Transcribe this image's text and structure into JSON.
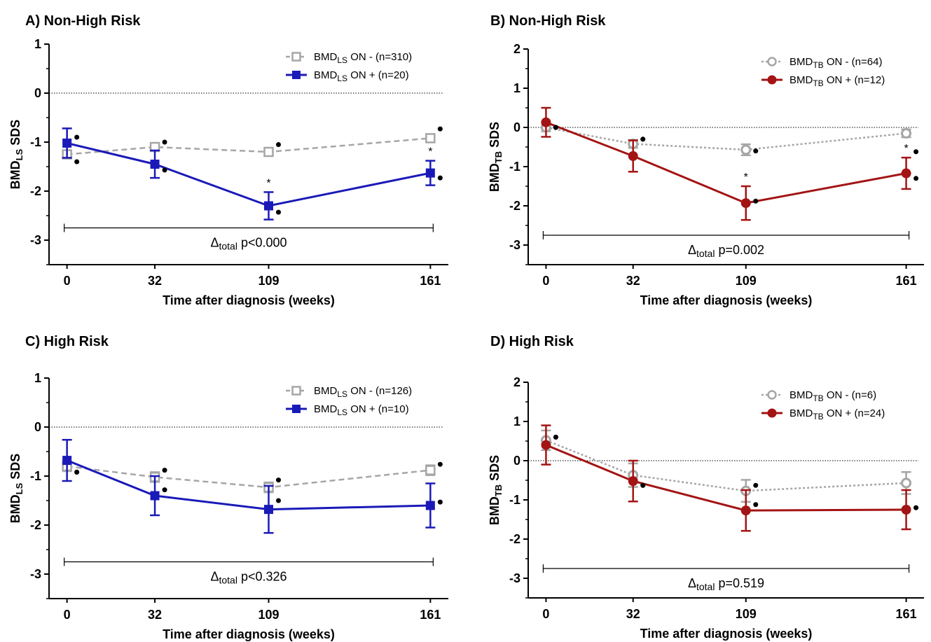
{
  "figure": {
    "panels": [
      {
        "title": "A)  Non-High Risk",
        "ylabel_main": "BMD",
        "ylabel_sub": "LS",
        "ylabel_tail": " SDS",
        "xlabel": "Time after diagnosis (weeks)",
        "annotation_main": "Δ",
        "annotation_sub": "total",
        "annotation_tail": " p<0.000",
        "legend": [
          {
            "main": "BMD",
            "sub": "LS",
            "tail": " ON -  (n=310)"
          },
          {
            "main": "BMD",
            "sub": "LS",
            "tail": " ON + (n=20)"
          }
        ]
      },
      {
        "title": "B)  Non-High Risk",
        "ylabel_main": "BMD",
        "ylabel_sub": "TB",
        "ylabel_tail": " SDS",
        "xlabel": "Time after diagnosis (weeks)",
        "annotation_main": "Δ",
        "annotation_sub": "total",
        "annotation_tail": " p=0.002",
        "legend": [
          {
            "main": "BMD",
            "sub": "TB",
            "tail": " ON -  (n=64)"
          },
          {
            "main": "BMD",
            "sub": "TB",
            "tail": " ON + (n=12)"
          }
        ]
      },
      {
        "title": "C)  High Risk",
        "ylabel_main": "BMD",
        "ylabel_sub": "LS",
        "ylabel_tail": " SDS",
        "xlabel": "Time after diagnosis (weeks)",
        "annotation_main": "Δ",
        "annotation_sub": "total",
        "annotation_tail": " p<0.326",
        "legend": [
          {
            "main": "BMD",
            "sub": "LS",
            "tail": " ON -  (n=126)"
          },
          {
            "main": "BMD",
            "sub": "LS",
            "tail": " ON + (n=10)"
          }
        ]
      },
      {
        "title": "D)  High Risk",
        "ylabel_main": "BMD",
        "ylabel_sub": "TB",
        "ylabel_tail": " SDS",
        "xlabel": "Time after diagnosis (weeks)",
        "annotation_main": "Δ",
        "annotation_sub": "total",
        "annotation_tail": " p=0.519",
        "legend": [
          {
            "main": "BMD",
            "sub": "TB",
            "tail": " ON -  (n=6)"
          },
          {
            "main": "BMD",
            "sub": "TB",
            "tail": " ON + (n=24)"
          }
        ]
      }
    ]
  },
  "chart_data": [
    {
      "type": "line",
      "title": "A)  Non-High Risk",
      "xlabel": "Time after diagnosis (weeks)",
      "ylabel": "BMD LS SDS",
      "x": [
        "0",
        "32",
        "109",
        "161"
      ],
      "ylim": [
        -3.5,
        1
      ],
      "yticks": [
        "1",
        "0",
        "-1",
        "-2",
        "-3"
      ],
      "marker": "square",
      "significance": [
        "",
        "",
        "*",
        "*"
      ],
      "significance_label": "*",
      "series": [
        {
          "name": "BMD LS ON -  (n=310)",
          "color": "#a6a6a6",
          "dashed": true,
          "values": [
            -1.25,
            -1.1,
            -1.2,
            -0.92
          ],
          "err": [
            0.05,
            0.05,
            0.05,
            0.05
          ]
        },
        {
          "name": "BMD LS ON + (n=20)",
          "color": "#1a1ab8",
          "dashed": false,
          "values": [
            -1.02,
            -1.45,
            -2.3,
            -1.63
          ],
          "err": [
            0.3,
            0.28,
            0.28,
            0.25
          ]
        }
      ],
      "dots": [
        [
          -0.9,
          -1.4
        ],
        [
          -1.0,
          -1.57
        ],
        [
          -1.05,
          -2.43
        ],
        [
          -0.73,
          -1.73
        ]
      ]
    },
    {
      "type": "line",
      "title": "B)  Non-High Risk",
      "xlabel": "Time after diagnosis (weeks)",
      "ylabel": "BMD TB SDS",
      "x": [
        "0",
        "32",
        "109",
        "161"
      ],
      "ylim": [
        -3.5,
        2
      ],
      "yticks": [
        "2",
        "1",
        "0",
        "-1",
        "-2",
        "-3"
      ],
      "marker": "circle",
      "significance": [
        "",
        "",
        "*",
        "*"
      ],
      "significance_label": "*",
      "series": [
        {
          "name": "BMD TB ON -  (n=64)",
          "color": "#a6a6a6",
          "dashed": true,
          "values": [
            0.0,
            -0.42,
            -0.57,
            -0.15
          ],
          "err": [
            0.1,
            0.1,
            0.14,
            0.1
          ]
        },
        {
          "name": "BMD TB ON + (n=12)",
          "color": "#a31414",
          "dashed": false,
          "values": [
            0.13,
            -0.73,
            -1.93,
            -1.17
          ],
          "err": [
            0.37,
            0.4,
            0.43,
            0.4
          ]
        }
      ],
      "dots": [
        [
          0.0,
          0.0
        ],
        [
          -0.3,
          -0.3
        ],
        [
          -0.6,
          -1.88
        ],
        [
          -0.62,
          -1.3
        ]
      ]
    },
    {
      "type": "line",
      "title": "C)  High Risk",
      "xlabel": "Time after diagnosis (weeks)",
      "ylabel": "BMD LS SDS",
      "x": [
        "0",
        "32",
        "109",
        "161"
      ],
      "ylim": [
        -3.5,
        1
      ],
      "yticks": [
        "1",
        "0",
        "-1",
        "-2",
        "-3"
      ],
      "marker": "square",
      "significance": [
        "",
        "",
        "",
        ""
      ],
      "significance_label": "",
      "series": [
        {
          "name": "BMD LS ON -  (n=126)",
          "color": "#a6a6a6",
          "dashed": true,
          "values": [
            -0.8,
            -1.02,
            -1.23,
            -0.88
          ],
          "err": [
            0.1,
            0.1,
            0.1,
            0.1
          ]
        },
        {
          "name": "BMD LS ON + (n=10)",
          "color": "#1a1ab8",
          "dashed": false,
          "values": [
            -0.68,
            -1.4,
            -1.68,
            -1.6
          ],
          "err": [
            0.42,
            0.4,
            0.48,
            0.45
          ]
        }
      ],
      "dots": [
        [
          -0.92,
          -0.92
        ],
        [
          -0.88,
          -1.28
        ],
        [
          -1.08,
          -1.5
        ],
        [
          -0.76,
          -1.53
        ]
      ]
    },
    {
      "type": "line",
      "title": "D)  High Risk",
      "xlabel": "Time after diagnosis (weeks)",
      "ylabel": "BMD TB SDS",
      "x": [
        "0",
        "32",
        "109",
        "161"
      ],
      "ylim": [
        -3.5,
        2
      ],
      "yticks": [
        "2",
        "1",
        "0",
        "-1",
        "-2",
        "-3"
      ],
      "marker": "circle",
      "significance": [
        "",
        "",
        "",
        ""
      ],
      "significance_label": "",
      "series": [
        {
          "name": "BMD TB ON -  (n=6)",
          "color": "#a6a6a6",
          "dashed": true,
          "values": [
            0.52,
            -0.37,
            -0.77,
            -0.57
          ],
          "err": [
            0.25,
            0.3,
            0.28,
            0.28
          ]
        },
        {
          "name": "BMD TB ON + (n=24)",
          "color": "#a31414",
          "dashed": false,
          "values": [
            0.4,
            -0.52,
            -1.27,
            -1.25
          ],
          "err": [
            0.5,
            0.52,
            0.52,
            0.5
          ]
        }
      ],
      "dots": [
        [
          0.6,
          0.6
        ],
        [
          -0.63,
          -0.63
        ],
        [
          -0.63,
          -1.12
        ],
        [
          -1.2,
          -1.2
        ]
      ]
    }
  ]
}
